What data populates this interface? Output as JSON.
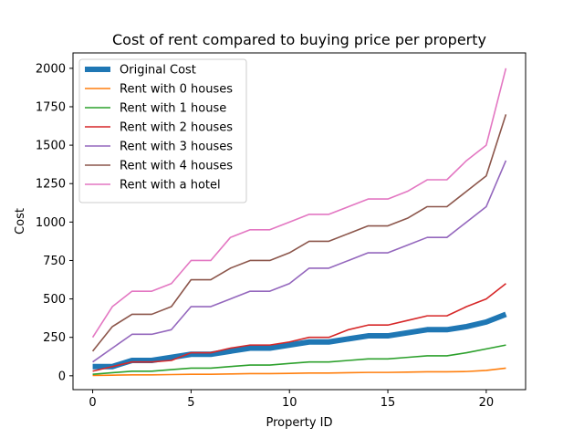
{
  "chart_data": {
    "type": "line",
    "title": "Cost of rent compared to buying price per property",
    "xlabel": "Property ID",
    "ylabel": "Cost",
    "xlim": [
      -1,
      22
    ],
    "ylim": [
      -90,
      2100
    ],
    "xticks": [
      0,
      5,
      10,
      15,
      20
    ],
    "yticks": [
      0,
      250,
      500,
      750,
      1000,
      1250,
      1500,
      1750,
      2000
    ],
    "grid": false,
    "legend_position": "upper-left",
    "x": [
      0,
      1,
      2,
      3,
      4,
      5,
      6,
      7,
      8,
      9,
      10,
      11,
      12,
      13,
      14,
      15,
      16,
      17,
      18,
      19,
      20,
      21
    ],
    "series": [
      {
        "name": "Original Cost",
        "color": "#1f77b4",
        "width": "thick",
        "values": [
          60,
          60,
          100,
          100,
          120,
          140,
          140,
          160,
          180,
          180,
          200,
          220,
          220,
          240,
          260,
          260,
          280,
          300,
          300,
          320,
          350,
          400
        ]
      },
      {
        "name": "Rent with 0 houses",
        "color": "#ff7f0e",
        "width": "normal",
        "values": [
          2,
          4,
          6,
          6,
          8,
          10,
          10,
          12,
          14,
          14,
          16,
          18,
          18,
          20,
          22,
          22,
          24,
          26,
          26,
          28,
          35,
          50
        ]
      },
      {
        "name": "Rent with 1 house",
        "color": "#2ca02c",
        "width": "normal",
        "values": [
          10,
          20,
          30,
          30,
          40,
          50,
          50,
          60,
          70,
          70,
          80,
          90,
          90,
          100,
          110,
          110,
          120,
          130,
          130,
          150,
          175,
          200
        ]
      },
      {
        "name": "Rent with 2 houses",
        "color": "#d62728",
        "width": "normal",
        "values": [
          30,
          60,
          90,
          90,
          100,
          150,
          150,
          180,
          200,
          200,
          220,
          250,
          250,
          300,
          330,
          330,
          360,
          390,
          390,
          450,
          500,
          600
        ]
      },
      {
        "name": "Rent with 3 houses",
        "color": "#9467bd",
        "width": "normal",
        "values": [
          90,
          180,
          270,
          270,
          300,
          450,
          450,
          500,
          550,
          550,
          600,
          700,
          700,
          750,
          800,
          800,
          850,
          900,
          900,
          1000,
          1100,
          1400
        ]
      },
      {
        "name": "Rent with 4 houses",
        "color": "#8c564b",
        "width": "normal",
        "values": [
          160,
          320,
          400,
          400,
          450,
          625,
          625,
          700,
          750,
          750,
          800,
          875,
          875,
          925,
          975,
          975,
          1025,
          1100,
          1100,
          1200,
          1300,
          1700
        ]
      },
      {
        "name": "Rent with a hotel",
        "color": "#e377c2",
        "width": "normal",
        "values": [
          250,
          450,
          550,
          550,
          600,
          750,
          750,
          900,
          950,
          950,
          1000,
          1050,
          1050,
          1100,
          1150,
          1150,
          1200,
          1275,
          1275,
          1400,
          1500,
          2000
        ]
      }
    ]
  }
}
